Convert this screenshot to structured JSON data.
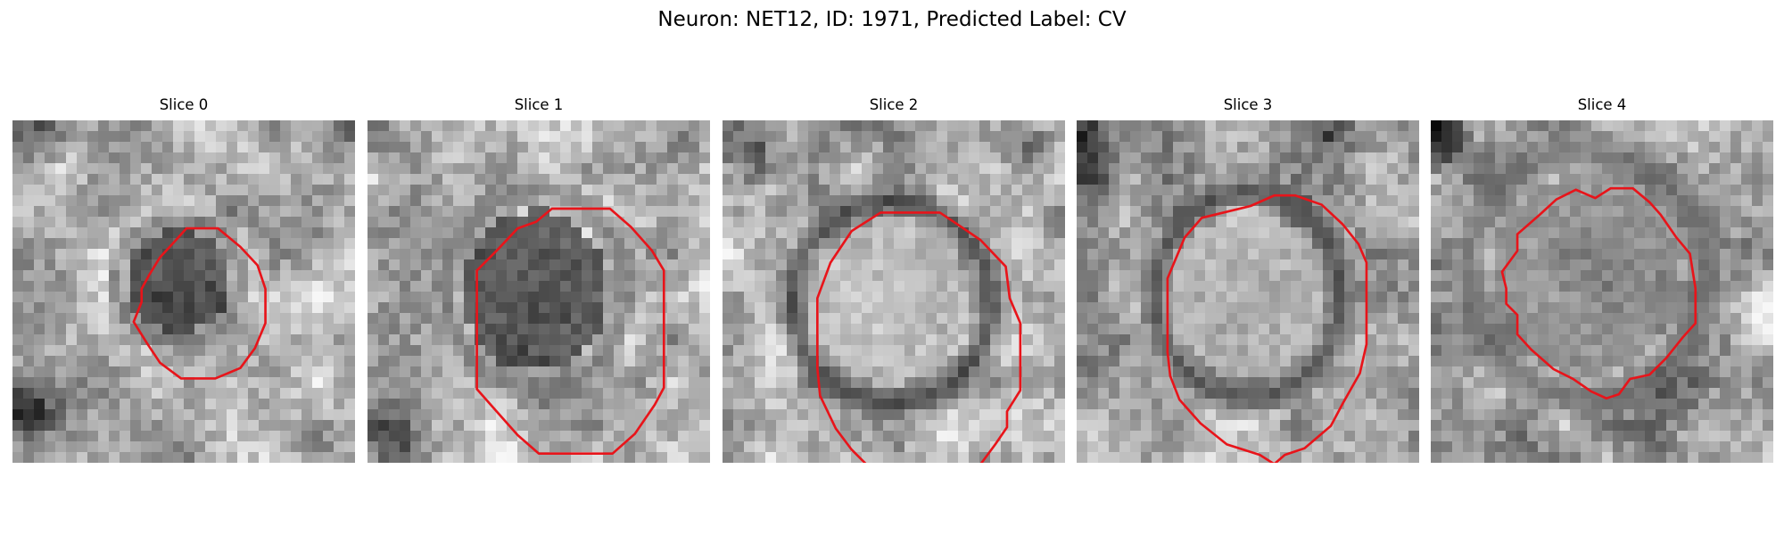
{
  "figure": {
    "title": "Neuron: NET12, ID: 1971, Predicted Label: CV"
  },
  "panels": [
    {
      "title": "Slice 0"
    },
    {
      "title": "Slice 1"
    },
    {
      "title": "Slice 2"
    },
    {
      "title": "Slice 3"
    },
    {
      "title": "Slice 4"
    }
  ],
  "colors": {
    "contour": "#e8141a"
  }
}
